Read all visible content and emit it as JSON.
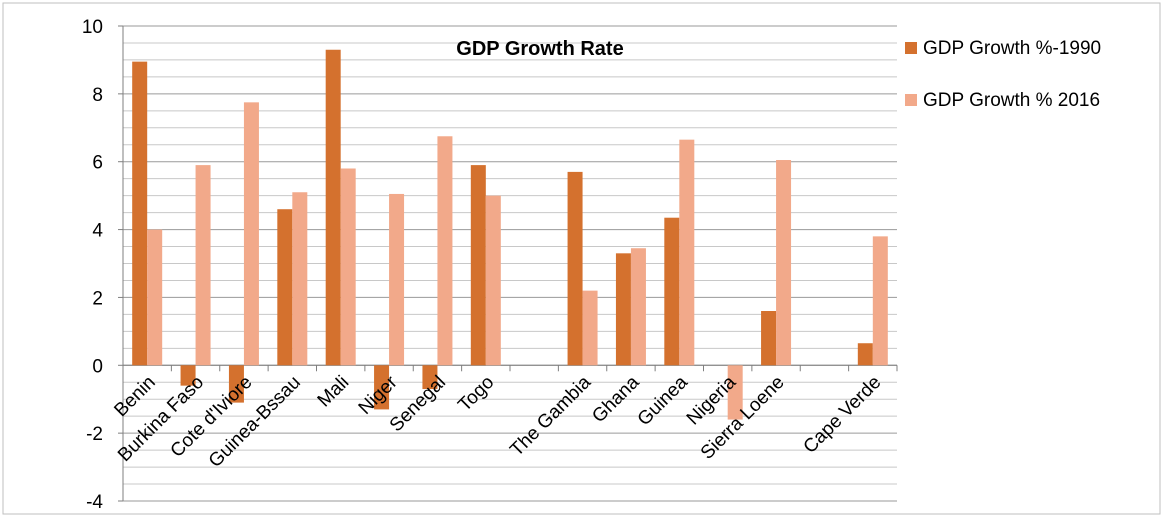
{
  "chart_data": {
    "type": "bar",
    "title": "GDP Growth Rate",
    "xlabel": "",
    "ylabel": "",
    "ylim": [
      -4,
      10
    ],
    "ytick_step": 2,
    "grid": true,
    "legend_position": "right",
    "categories": [
      "Benin",
      "Burkina Faso",
      "Cote d'Iviore",
      "Guinea-Bssau",
      "Mali",
      "Niger",
      "Senegal",
      "Togo",
      "",
      "The Gambia",
      "Ghana",
      "Guinea",
      "Nigeria",
      "Sierra Loene",
      "",
      "Cape Verde"
    ],
    "series": [
      {
        "name": "GDP Growth %-1990",
        "color": "#D4712E",
        "values": [
          8.95,
          -0.6,
          -1.1,
          4.6,
          9.3,
          -1.3,
          -0.7,
          5.9,
          null,
          5.7,
          3.3,
          4.35,
          null,
          1.6,
          null,
          0.65
        ]
      },
      {
        "name": "GDP Growth % 2016",
        "color": "#F2A98A",
        "values": [
          4.0,
          5.9,
          7.75,
          5.1,
          5.8,
          5.05,
          6.75,
          5.0,
          null,
          2.2,
          3.45,
          6.65,
          -1.6,
          6.05,
          null,
          3.8
        ]
      }
    ]
  }
}
